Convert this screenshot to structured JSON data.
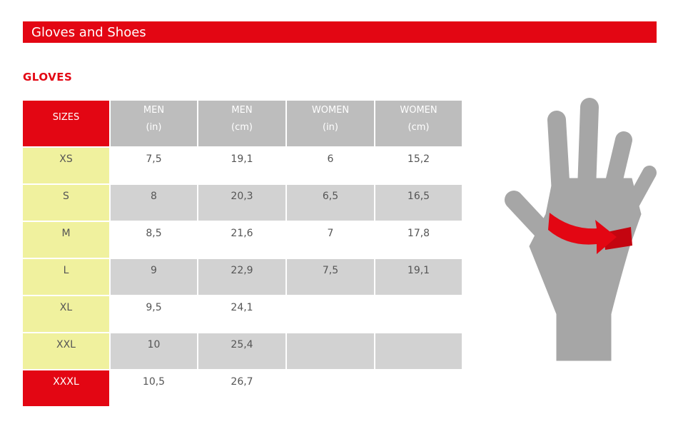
{
  "header": {
    "title": "Gloves and Shoes"
  },
  "section": {
    "title": "GLOVES"
  },
  "table": {
    "columns": [
      [
        "SIZES"
      ],
      [
        "MEN",
        "(in)"
      ],
      [
        "MEN",
        "(cm)"
      ],
      [
        "WOMEN",
        "(in)"
      ],
      [
        "WOMEN",
        "(cm)"
      ]
    ],
    "rows": [
      [
        "XS",
        "7,5",
        "19,1",
        "6",
        "15,2"
      ],
      [
        "S",
        "8",
        "20,3",
        "6,5",
        "16,5"
      ],
      [
        "M",
        "8,5",
        "21,6",
        "7",
        "17,8"
      ],
      [
        "L",
        "9",
        "22,9",
        "7,5",
        "19,1"
      ],
      [
        "XL",
        "9,5",
        "24,1",
        null,
        null
      ],
      [
        "XXL",
        "10",
        "25,4",
        null,
        null
      ],
      [
        "XXXL",
        "10,5",
        "26,7",
        null,
        null
      ]
    ]
  }
}
